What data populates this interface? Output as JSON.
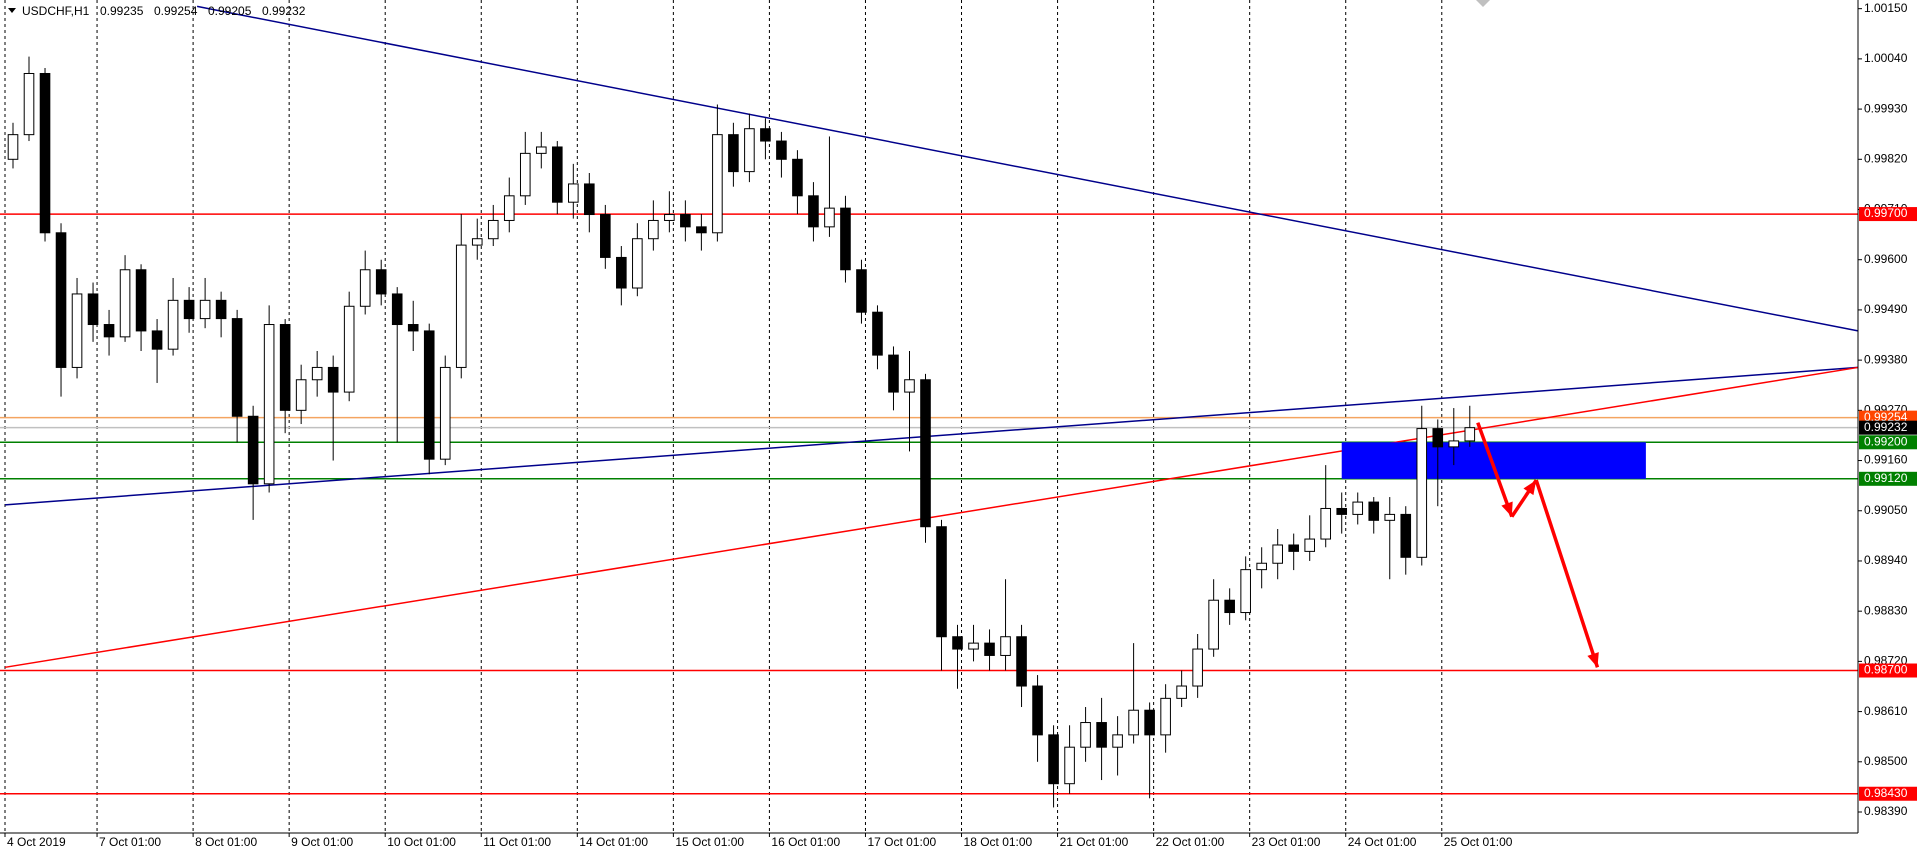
{
  "chart_data": {
    "type": "candlestick",
    "symbol": "USDCHF,H1",
    "quote": [
      0.99235,
      0.99254,
      0.99205,
      0.99232
    ],
    "xlim": [
      0,
      463
    ],
    "ylim": [
      0.98344,
      1.00169
    ],
    "grid": true,
    "up_color": "#ffffff",
    "down_color": "#000000",
    "xticks": [
      {
        "value": 0,
        "label": "4 Oct 2019"
      },
      {
        "value": 23,
        "label": "7 Oct 01:00"
      },
      {
        "value": 47,
        "label": "8 Oct 01:00"
      },
      {
        "value": 71,
        "label": "9 Oct 01:00"
      },
      {
        "value": 95,
        "label": "10 Oct 01:00"
      },
      {
        "value": 119,
        "label": "11 Oct 01:00"
      },
      {
        "value": 143,
        "label": "14 Oct 01:00"
      },
      {
        "value": 167,
        "label": "15 Oct 01:00"
      },
      {
        "value": 191,
        "label": "16 Oct 01:00"
      },
      {
        "value": 215,
        "label": "17 Oct 01:00"
      },
      {
        "value": 239,
        "label": "18 Oct 01:00"
      },
      {
        "value": 263,
        "label": "21 Oct 01:00"
      },
      {
        "value": 287,
        "label": "22 Oct 01:00"
      },
      {
        "value": 311,
        "label": "23 Oct 01:00"
      },
      {
        "value": 335,
        "label": "24 Oct 01:00"
      },
      {
        "value": 359,
        "label": "25 Oct 01:00"
      }
    ],
    "yticks": [
      {
        "value": 1.0015,
        "label": "1.00150"
      },
      {
        "value": 1.0004,
        "label": "1.00040"
      },
      {
        "value": 0.9993,
        "label": "0.99930"
      },
      {
        "value": 0.9982,
        "label": "0.99820"
      },
      {
        "value": 0.9971,
        "label": "0.99710"
      },
      {
        "value": 0.996,
        "label": "0.99600"
      },
      {
        "value": 0.9949,
        "label": "0.99490"
      },
      {
        "value": 0.9938,
        "label": "0.99380"
      },
      {
        "value": 0.9927,
        "label": "0.99270"
      },
      {
        "value": 0.9916,
        "label": "0.99160"
      },
      {
        "value": 0.9905,
        "label": "0.99050"
      },
      {
        "value": 0.9894,
        "label": "0.98940"
      },
      {
        "value": 0.9883,
        "label": "0.98830"
      },
      {
        "value": 0.9872,
        "label": "0.98720"
      },
      {
        "value": 0.9861,
        "label": "0.98610"
      },
      {
        "value": 0.985,
        "label": "0.98500"
      },
      {
        "value": 0.9839,
        "label": "0.98390"
      }
    ],
    "x": [
      0,
      4,
      8,
      12,
      16,
      20,
      24,
      28,
      32,
      36,
      40,
      44,
      48,
      52,
      56,
      60,
      64,
      68,
      72,
      76,
      80,
      84,
      88,
      92,
      96,
      100,
      104,
      108,
      112,
      116,
      120,
      124,
      128,
      132,
      136,
      140,
      144,
      148,
      152,
      156,
      160,
      164,
      168,
      172,
      176,
      180,
      184,
      188,
      192,
      196,
      200,
      204,
      208,
      212,
      216,
      220,
      224,
      228,
      232,
      236,
      240,
      244,
      248,
      252,
      256,
      260,
      264,
      268,
      272,
      276,
      280,
      284,
      288,
      292,
      296,
      300,
      304,
      308,
      312,
      316,
      320,
      324,
      328,
      332,
      336,
      340,
      344,
      348,
      352,
      356,
      360,
      364
    ],
    "open": [
      0.9982,
      0.99874,
      1.00008,
      0.99659,
      0.99364,
      0.99525,
      0.99458,
      0.99431,
      0.99578,
      0.99444,
      0.99404,
      0.99511,
      0.99471,
      0.99511,
      0.99471,
      0.99257,
      0.99109,
      0.99458,
      0.9927,
      0.99337,
      0.99364,
      0.9931,
      0.99498,
      0.99578,
      0.99525,
      0.99458,
      0.99444,
      0.99163,
      0.99364,
      0.99632,
      0.99646,
      0.99686,
      0.9974,
      0.99833,
      0.99847,
      0.99726,
      0.99766,
      0.99699,
      0.99605,
      0.99538,
      0.99646,
      0.99686,
      0.99699,
      0.99672,
      0.99659,
      0.99874,
      0.99793,
      0.99887,
      0.9986,
      0.9982,
      0.9974,
      0.99672,
      0.99713,
      0.99578,
      0.99485,
      0.99391,
      0.9931,
      0.99337,
      0.99015,
      0.98774,
      0.98747,
      0.9876,
      0.98733,
      0.98774,
      0.98666,
      0.98559,
      0.98452,
      0.98532,
      0.98586,
      0.98532,
      0.98559,
      0.98613,
      0.98559,
      0.98639,
      0.98666,
      0.98747,
      0.98854,
      0.98827,
      0.98921,
      0.98935,
      0.98975,
      0.98961,
      0.98988,
      0.99055,
      0.99042,
      0.99069,
      0.99029,
      0.99042,
      0.98948,
      0.9923,
      0.9919,
      0.99203
    ],
    "high": [
      0.999,
      1.00045,
      1.0002,
      0.9968,
      0.9956,
      0.9955,
      0.9949,
      0.9961,
      0.9959,
      0.9947,
      0.9956,
      0.9954,
      0.9956,
      0.9953,
      0.9949,
      0.9928,
      0.995,
      0.9947,
      0.9937,
      0.994,
      0.9939,
      0.9953,
      0.9962,
      0.996,
      0.9954,
      0.9951,
      0.9946,
      0.9939,
      0.997,
      0.9969,
      0.9972,
      0.9978,
      0.9988,
      0.9988,
      0.9986,
      0.9981,
      0.9979,
      0.9972,
      0.9963,
      0.9968,
      0.9973,
      0.9975,
      0.9973,
      0.997,
      0.9994,
      0.999,
      0.9992,
      0.9991,
      0.9988,
      0.9984,
      0.9977,
      0.9987,
      0.9974,
      0.996,
      0.995,
      0.9941,
      0.994,
      0.9935,
      0.9903,
      0.988,
      0.988,
      0.9879,
      0.989,
      0.988,
      0.9869,
      0.9858,
      0.9858,
      0.9862,
      0.9864,
      0.986,
      0.9876,
      0.9863,
      0.9867,
      0.987,
      0.9878,
      0.989,
      0.9888,
      0.9895,
      0.9897,
      0.9901,
      0.99,
      0.9904,
      0.9915,
      0.9909,
      0.9909,
      0.9908,
      0.9908,
      0.9906,
      0.9928,
      0.9925,
      0.99275,
      0.9928
    ],
    "low": [
      0.998,
      0.9986,
      0.9964,
      0.993,
      0.9934,
      0.9942,
      0.9939,
      0.9942,
      0.994,
      0.9933,
      0.9939,
      0.9944,
      0.9945,
      0.9943,
      0.992,
      0.9903,
      0.9909,
      0.9922,
      0.9924,
      0.993,
      0.9916,
      0.9929,
      0.9948,
      0.995,
      0.992,
      0.994,
      0.9913,
      0.9915,
      0.9934,
      0.996,
      0.9963,
      0.9966,
      0.9972,
      0.998,
      0.997,
      0.9969,
      0.9966,
      0.9958,
      0.995,
      0.9952,
      0.9962,
      0.9966,
      0.9964,
      0.9962,
      0.9964,
      0.9976,
      0.9977,
      0.9982,
      0.9978,
      0.997,
      0.9964,
      0.9965,
      0.9955,
      0.9946,
      0.9936,
      0.9927,
      0.9918,
      0.9898,
      0.987,
      0.9866,
      0.9872,
      0.987,
      0.987,
      0.9862,
      0.985,
      0.984,
      0.9843,
      0.985,
      0.9846,
      0.9847,
      0.9854,
      0.9842,
      0.9852,
      0.9862,
      0.9864,
      0.9873,
      0.988,
      0.9881,
      0.9888,
      0.989,
      0.9892,
      0.9894,
      0.9897,
      0.99,
      0.9902,
      0.99,
      0.989,
      0.9891,
      0.9893,
      0.9906,
      0.9915,
      0.9919
    ],
    "close": [
      0.99874,
      1.00008,
      0.99659,
      0.99364,
      0.99525,
      0.99458,
      0.99431,
      0.99578,
      0.99444,
      0.99404,
      0.99511,
      0.99471,
      0.99511,
      0.99471,
      0.99257,
      0.99109,
      0.99458,
      0.9927,
      0.99337,
      0.99364,
      0.9931,
      0.99498,
      0.99578,
      0.99525,
      0.99458,
      0.99444,
      0.99163,
      0.99364,
      0.99632,
      0.99646,
      0.99686,
      0.9974,
      0.99833,
      0.99847,
      0.99726,
      0.99766,
      0.99699,
      0.99605,
      0.99538,
      0.99646,
      0.99686,
      0.99699,
      0.99672,
      0.99659,
      0.99874,
      0.99793,
      0.99887,
      0.9986,
      0.9982,
      0.9974,
      0.99672,
      0.99713,
      0.99578,
      0.99485,
      0.99391,
      0.9931,
      0.99337,
      0.99015,
      0.98774,
      0.98747,
      0.9876,
      0.98733,
      0.98774,
      0.98666,
      0.98559,
      0.98452,
      0.98532,
      0.98586,
      0.98532,
      0.98559,
      0.98613,
      0.98559,
      0.98639,
      0.98666,
      0.98747,
      0.98854,
      0.98827,
      0.98921,
      0.98935,
      0.98975,
      0.98961,
      0.98988,
      0.99055,
      0.99042,
      0.99069,
      0.99029,
      0.99042,
      0.98948,
      0.9923,
      0.9919,
      0.99203,
      0.99232
    ],
    "levels": [
      {
        "value": 0.997,
        "label": "0.99700",
        "color": "#ff0000",
        "label_color": "#ff0000"
      },
      {
        "value": 0.99254,
        "label": "0.99254",
        "color": "#f4a460",
        "label_color": "#ff4500"
      },
      {
        "value": 0.99232,
        "label": "0.99232",
        "color": "#c0c0c0",
        "label_color": "#000000"
      },
      {
        "value": 0.992,
        "label": "0.99200",
        "color": "#008000",
        "label_color": "#008000"
      },
      {
        "value": 0.9912,
        "label": "0.99120",
        "color": "#008000",
        "label_color": "#008000"
      },
      {
        "value": 0.987,
        "label": "0.98700",
        "color": "#ff0000",
        "label_color": "#ff0000"
      },
      {
        "value": 0.9843,
        "label": "0.98430",
        "color": "#ff0000",
        "label_color": "#ff0000"
      }
    ],
    "trendlines": [
      {
        "x": [
          48,
          463
        ],
        "y": [
          1.00155,
          0.99444
        ],
        "color": "#00008b"
      },
      {
        "x": [
          0,
          463
        ],
        "y": [
          0.99063,
          0.99364
        ],
        "color": "#00008b"
      },
      {
        "x": [
          0,
          463
        ],
        "y": [
          0.98707,
          0.99364
        ],
        "color": "#ff0000"
      }
    ],
    "zone": {
      "x": [
        334,
        410
      ],
      "y": [
        0.9912,
        0.992
      ],
      "color": "#0000ff"
    },
    "arrows": [
      {
        "x": [
          368,
          376.5
        ],
        "y": [
          0.99243,
          0.99037
        ],
        "color": "#ff0000"
      },
      {
        "x": [
          376.5,
          382.6
        ],
        "y": [
          0.99037,
          0.99117
        ],
        "color": "#ff0000"
      },
      {
        "x": [
          382.6,
          397.9
        ],
        "y": [
          0.99117,
          0.98707
        ],
        "color": "#ff0000"
      }
    ]
  }
}
